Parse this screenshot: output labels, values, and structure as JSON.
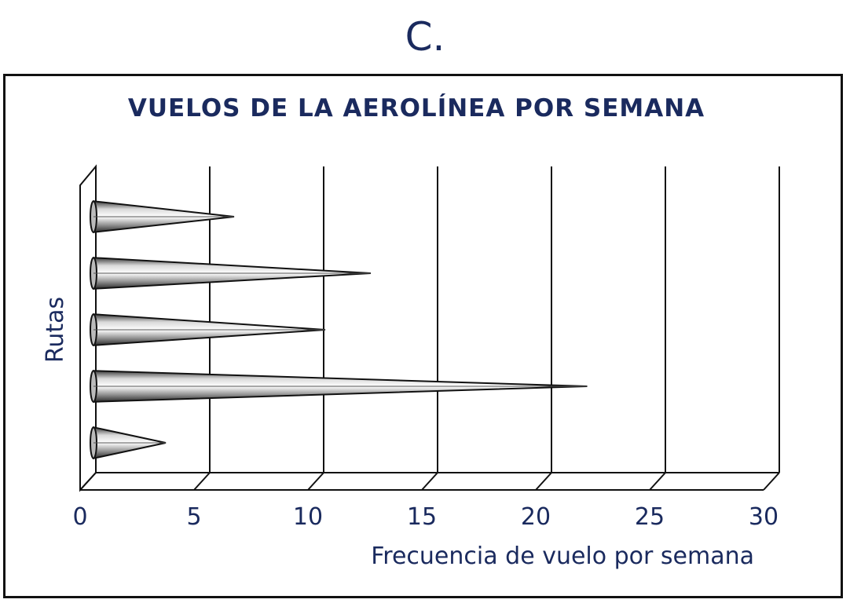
{
  "option_letter": "C.",
  "chart_data": {
    "type": "bar",
    "orientation": "horizontal",
    "bar_style": "3d-cone",
    "title": "VUELOS DE LA AEROLÍNEA POR SEMANA",
    "xlabel": "Frecuencia de vuelo por semana",
    "ylabel": "Rutas",
    "xlim": [
      0,
      30
    ],
    "x_ticks": [
      "0",
      "5",
      "10",
      "15",
      "20",
      "25",
      "30"
    ],
    "grid": true,
    "legend": "none",
    "series": [
      {
        "values": [
          6,
          12,
          10,
          21.5,
          3
        ]
      }
    ],
    "colors": {
      "text": "#1a2a5e",
      "grid": "#111111",
      "cone": "#a8a8a8"
    }
  }
}
